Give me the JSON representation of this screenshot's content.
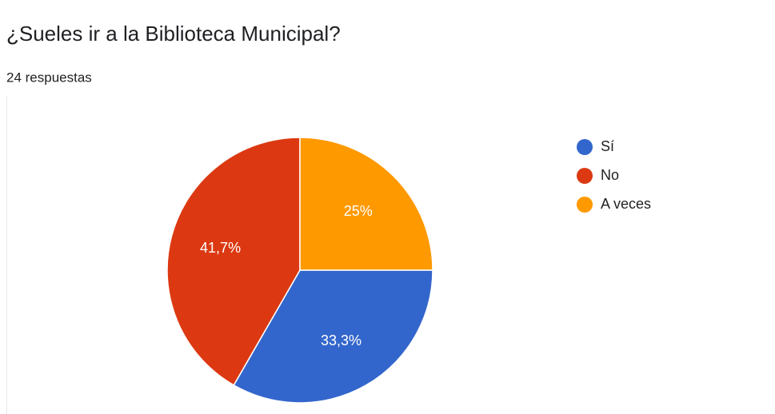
{
  "chart_data": {
    "type": "pie",
    "title": "¿Sueles ir a la Biblioteca Municipal?",
    "subtitle": "24 respuestas",
    "categories": [
      "Sí",
      "No",
      "A veces"
    ],
    "values": [
      33.3,
      41.7,
      25
    ],
    "value_labels": [
      "33,3%",
      "41,7%",
      "25%"
    ],
    "colors": [
      "#3366cc",
      "#dc3912",
      "#ff9900"
    ],
    "legend": "right"
  }
}
